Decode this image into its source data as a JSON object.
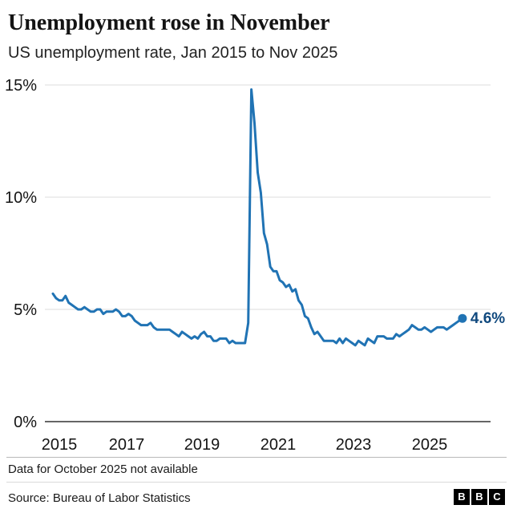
{
  "header": {
    "title": "Unemployment rose in November",
    "subtitle": "US unemployment rate, Jan 2015 to Nov 2025"
  },
  "footer": {
    "note": "Data for October 2025 not available",
    "source": "Source: Bureau of Labor Statistics",
    "logo_letters": [
      "B",
      "B",
      "C"
    ]
  },
  "chart_data": {
    "type": "line",
    "title": "Unemployment rose in November",
    "subtitle": "US unemployment rate, Jan 2015 to Nov 2025",
    "x_start": "2015-01",
    "x_end": "2025-11",
    "xticks": [
      "2015",
      "2017",
      "2019",
      "2021",
      "2023",
      "2025"
    ],
    "yticks": [
      "0%",
      "5%",
      "10%",
      "15%"
    ],
    "ylim": [
      0,
      15
    ],
    "grid": "horizontal",
    "line_color": "#2073b4",
    "end_label": "4.6%",
    "end_label_color": "#10497e",
    "missing_point": "2025-10",
    "values": [
      5.7,
      5.5,
      5.4,
      5.4,
      5.6,
      5.3,
      5.2,
      5.1,
      5.0,
      5.0,
      5.1,
      5.0,
      4.9,
      4.9,
      5.0,
      5.0,
      4.8,
      4.9,
      4.9,
      4.9,
      5.0,
      4.9,
      4.7,
      4.7,
      4.8,
      4.7,
      4.5,
      4.4,
      4.3,
      4.3,
      4.3,
      4.4,
      4.2,
      4.1,
      4.1,
      4.1,
      4.1,
      4.1,
      4.0,
      3.9,
      3.8,
      4.0,
      3.9,
      3.8,
      3.7,
      3.8,
      3.7,
      3.9,
      4.0,
      3.8,
      3.8,
      3.6,
      3.6,
      3.7,
      3.7,
      3.7,
      3.5,
      3.6,
      3.5,
      3.5,
      3.5,
      3.5,
      4.4,
      14.8,
      13.3,
      11.1,
      10.2,
      8.4,
      7.9,
      6.9,
      6.7,
      6.7,
      6.3,
      6.2,
      6.0,
      6.1,
      5.8,
      5.9,
      5.4,
      5.2,
      4.7,
      4.6,
      4.2,
      3.9,
      4.0,
      3.8,
      3.6,
      3.6,
      3.6,
      3.6,
      3.5,
      3.7,
      3.5,
      3.7,
      3.6,
      3.5,
      3.4,
      3.6,
      3.5,
      3.4,
      3.7,
      3.6,
      3.5,
      3.8,
      3.8,
      3.8,
      3.7,
      3.7,
      3.7,
      3.9,
      3.8,
      3.9,
      4.0,
      4.1,
      4.3,
      4.2,
      4.1,
      4.1,
      4.2,
      4.1,
      4.0,
      4.1,
      4.2,
      4.2,
      4.2,
      4.1,
      4.2,
      4.3,
      4.4,
      null,
      4.6
    ]
  }
}
